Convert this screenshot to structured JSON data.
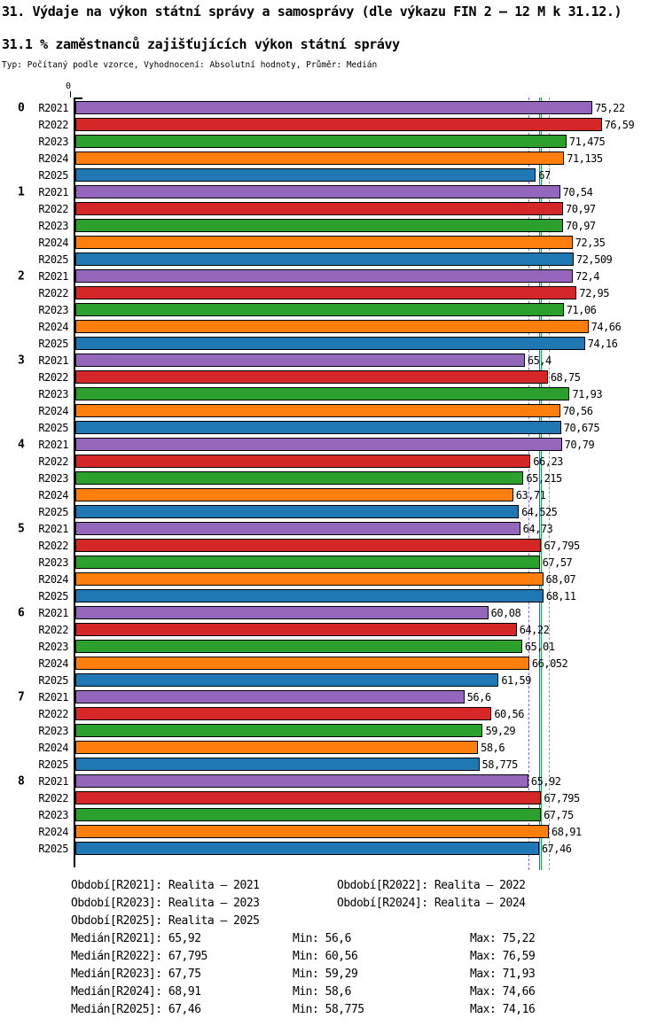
{
  "header": {
    "title": "31. Výdaje na výkon státní správy a samosprávy (dle výkazu FIN 2 – 12 M k 31.12.)",
    "subtitle": "31.1 % zaměstnanců zajišťujících výkon státní správy",
    "meta": "Typ: Počítaný podle vzorce, Vyhodnocení: Absolutní hodnoty, Průměr: Medián"
  },
  "chart_data": {
    "type": "bar",
    "orientation": "horizontal",
    "title": "31.1 % zaměstnanců zajišťujících výkon státní správy",
    "xlabel": "",
    "ylabel": "",
    "axis": {
      "zero_label": "0",
      "x_origin": 0
    },
    "grid": false,
    "legend_position": "bottom",
    "groups": [
      "0",
      "1",
      "2",
      "3",
      "4",
      "5",
      "6",
      "7",
      "8"
    ],
    "series": [
      {
        "name": "R2021",
        "color": "#9467bd",
        "median": 65.92,
        "median_line": "dashed",
        "values": [
          75.22,
          70.54,
          72.4,
          65.4,
          70.79,
          64.73,
          60.08,
          56.6,
          65.92
        ],
        "labels": [
          "75,22",
          "70,54",
          "72,4",
          "65,4",
          "70,79",
          "64,73",
          "60,08",
          "56,6",
          "65,92"
        ]
      },
      {
        "name": "R2022",
        "color": "#d62728",
        "median": 67.795,
        "median_line": "solid",
        "values": [
          76.59,
          70.97,
          72.95,
          68.75,
          66.23,
          67.795,
          64.22,
          60.56,
          67.795
        ],
        "labels": [
          "76,59",
          "70,97",
          "72,95",
          "68,75",
          "66,23",
          "67,795",
          "64,22",
          "60,56",
          "67,795"
        ]
      },
      {
        "name": "R2023",
        "color": "#2ca02c",
        "median": 67.75,
        "median_line": "solid",
        "values": [
          71.475,
          70.97,
          71.06,
          71.93,
          65.215,
          67.57,
          65.01,
          59.29,
          67.75
        ],
        "labels": [
          "71,475",
          "70,97",
          "71,06",
          "71,93",
          "65,215",
          "67,57",
          "65,01",
          "59,29",
          "67,75"
        ]
      },
      {
        "name": "R2024",
        "color": "#ff7f0e",
        "median": 68.91,
        "median_line": "dashed",
        "values": [
          71.135,
          72.35,
          74.66,
          70.56,
          63.71,
          68.07,
          66.052,
          58.6,
          68.91
        ],
        "labels": [
          "71,135",
          "72,35",
          "74,66",
          "70,56",
          "63,71",
          "68,07",
          "66,052",
          "58,6",
          "68,91"
        ]
      },
      {
        "name": "R2025",
        "color": "#1f77b4",
        "median": 67.46,
        "median_line": "solid",
        "values": [
          67,
          72.509,
          74.16,
          70.675,
          64.525,
          68.11,
          61.59,
          58.775,
          67.46
        ],
        "labels": [
          "67",
          "72,509",
          "74,16",
          "70,675",
          "64,525",
          "68,11",
          "61,59",
          "58,775",
          "67,46"
        ]
      }
    ]
  },
  "legend": {
    "periods": [
      "Období[R2021]: Realita – 2021",
      "Období[R2022]: Realita – 2022",
      "Období[R2023]: Realita – 2023",
      "Období[R2024]: Realita – 2024",
      "Období[R2025]: Realita – 2025"
    ],
    "stats": [
      {
        "median": "Medián[R2021]: 65,92",
        "min": "Min: 56,6",
        "max": "Max: 75,22"
      },
      {
        "median": "Medián[R2022]: 67,795",
        "min": "Min: 60,56",
        "max": "Max: 76,59"
      },
      {
        "median": "Medián[R2023]: 67,75",
        "min": "Min: 59,29",
        "max": "Max: 71,93"
      },
      {
        "median": "Medián[R2024]: 68,91",
        "min": "Min: 58,6",
        "max": "Max: 74,66"
      },
      {
        "median": "Medián[R2025]: 67,46",
        "min": "Min: 58,775",
        "max": "Max: 74,16"
      }
    ]
  }
}
